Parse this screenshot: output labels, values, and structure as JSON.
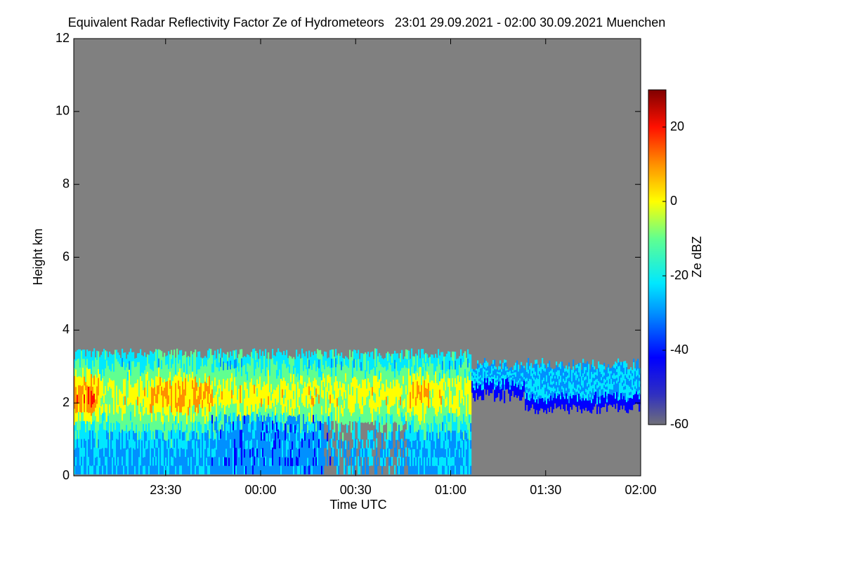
{
  "chart_data": {
    "type": "heatmap",
    "title": "Equivalent Radar Reflectivity Factor Ze of Hydrometeors   23:01 29.09.2021 - 02:00 30.09.2021 Muenchen",
    "x_label": "Time UTC",
    "y_label": "Height km",
    "colorbar_label": "Ze dBZ",
    "xlim": [
      1381,
      1560
    ],
    "xticks": [
      {
        "value": 1410,
        "label": "23:30"
      },
      {
        "value": 1440,
        "label": "00:00"
      },
      {
        "value": 1470,
        "label": "00:30"
      },
      {
        "value": 1500,
        "label": "01:00"
      },
      {
        "value": 1530,
        "label": "01:30"
      },
      {
        "value": 1560,
        "label": "02:00"
      }
    ],
    "ylim": [
      0,
      12
    ],
    "yticks": [
      0,
      2,
      4,
      6,
      8,
      10,
      12
    ],
    "clim": [
      -60,
      30
    ],
    "cticks": [
      20,
      0,
      -20,
      -40,
      -60
    ],
    "background_color": "#808080",
    "colorscale": [
      [
        -60,
        "#707078"
      ],
      [
        -52,
        "#3030c0"
      ],
      [
        -42,
        "#0000ff"
      ],
      [
        -30,
        "#0090ff"
      ],
      [
        -22,
        "#00e8ff"
      ],
      [
        -10,
        "#60ff90"
      ],
      [
        0,
        "#ffff00"
      ],
      [
        10,
        "#ff9000"
      ],
      [
        20,
        "#ff1000"
      ],
      [
        30,
        "#800000"
      ]
    ]
  }
}
